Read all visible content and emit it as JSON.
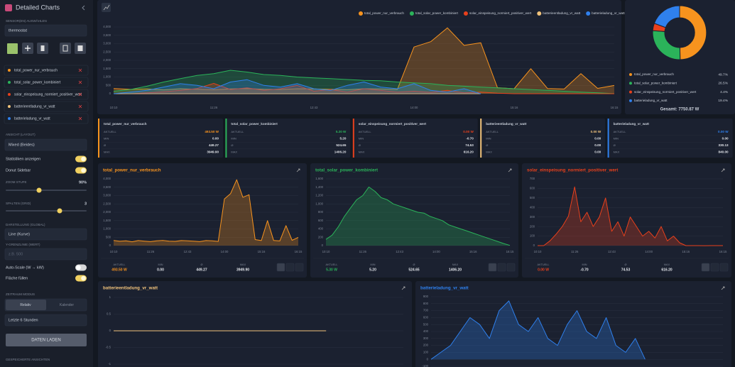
{
  "sidebar": {
    "title": "Detailed Charts",
    "sensor_label": "SENSOR(EN) AUSWÄHLEN",
    "sensor_input": "thermostat",
    "sensors": [
      {
        "name": "total_power_nur_verbrauch",
        "color": "#f7931e"
      },
      {
        "name": "total_solar_power_kombiniert",
        "color": "#2bb35a"
      },
      {
        "name": "solar_einspeisung_normiert_positiver_wert",
        "color": "#e8401c"
      },
      {
        "name": "batterieentladung_vr_watt",
        "color": "#f0c27b"
      },
      {
        "name": "batterieladung_vr_watt",
        "color": "#2f80ed"
      }
    ],
    "layout_label": "ANSICHT (LAYOUT)",
    "layout_value": "Mixed (Beides)",
    "toggles_top": [
      {
        "label": "Statistiken anzeigen",
        "on": true
      },
      {
        "label": "Donut Sidebar",
        "on": true
      }
    ],
    "zoom_label": "ZOOM STUFE",
    "zoom_value": "90%",
    "columns_label": "SPALTEN (GRID)",
    "columns_value": "3",
    "display_label": "DARSTELLUNG (GLOBAL)",
    "display_value": "Line (Kurve)",
    "limit_label": "Y-GRENZLINIE (WERT)",
    "limit_placeholder": "z.B. 500",
    "toggles_bottom": [
      {
        "label": "Auto-Scale (W → kW)",
        "on": false
      },
      {
        "label": "Fläche füllen",
        "on": true
      }
    ],
    "period_label": "ZEITRAUM MODUS",
    "tabs": [
      "Relativ",
      "Kalender"
    ],
    "period_value": "Letzte 6 Stunden",
    "load_button": "DATEN LADEN",
    "saved_label": "GESPEICHERTE ANSICHTEN"
  },
  "main_chart": {
    "type": "line",
    "grid": true,
    "fill": true,
    "categories": [
      "10:10",
      null,
      null,
      null,
      null,
      null,
      "11:26",
      null,
      null,
      null,
      null,
      null,
      "12:43",
      null,
      null,
      null,
      null,
      null,
      "14:00",
      null,
      null,
      null,
      null,
      null,
      "15:16",
      null,
      null,
      null,
      null,
      null,
      "16:15"
    ],
    "ylim": [
      0,
      4000
    ],
    "yticks": [
      0,
      500,
      {
        "value": 1000,
        "label": "1,000"
      },
      {
        "value": 1500,
        "label": "1,500"
      },
      {
        "value": 2000,
        "label": "2,000"
      },
      {
        "value": 2500,
        "label": "2,500"
      },
      {
        "value": 3000,
        "label": "3,000"
      },
      {
        "value": 3500,
        "label": "3,500"
      },
      {
        "value": 4000,
        "label": "4,000"
      }
    ],
    "series": [
      {
        "name": "total_power_nur_verbrauch",
        "color": "#f7931e",
        "values": [
          310,
          260,
          290,
          230,
          300,
          270,
          240,
          285,
          305,
          265,
          255,
          300,
          285,
          265,
          240,
          300,
          285,
          250,
          2800,
          3120,
          3949.9,
          2900,
          3050,
          360,
          300,
          1500,
          310,
          280,
          1200,
          320,
          493.5
        ]
      },
      {
        "name": "total_solar_power_kombiniert",
        "color": "#2bb35a",
        "values": [
          150,
          250,
          450,
          700,
          900,
          1100,
          1200,
          1406.2,
          1300,
          1150,
          1100,
          1000,
          950,
          900,
          850,
          800,
          780,
          700,
          650,
          600,
          500,
          450,
          400,
          350,
          300,
          250,
          200,
          150,
          100,
          50,
          5.3
        ]
      },
      {
        "name": "solar_einspeisung_normiert_positiver_wert",
        "color": "#e8401c",
        "values": [
          0,
          0,
          50,
          120,
          200,
          310,
          616.2,
          250,
          350,
          200,
          300,
          500,
          150,
          250,
          100,
          300,
          200,
          100,
          150,
          80,
          200,
          50,
          100,
          30,
          0,
          0,
          0,
          -0.7,
          0,
          0,
          0
        ]
      },
      {
        "name": "batterieentladung_vr_watt",
        "color": "#f0c27b",
        "values": [
          0,
          0,
          0,
          0,
          0,
          0,
          0,
          0,
          0,
          0,
          0,
          0,
          0,
          0,
          0,
          0,
          0,
          0,
          0,
          0,
          0,
          0,
          0,
          null,
          null,
          null,
          null,
          null,
          null,
          null,
          null
        ]
      },
      {
        "name": "batterieladung_vr_watt",
        "color": "#2f80ed",
        "values": [
          0,
          100,
          200,
          400,
          600,
          500,
          300,
          700,
          840,
          500,
          400,
          600,
          300,
          200,
          500,
          700,
          400,
          300,
          600,
          200,
          100,
          300,
          0,
          null,
          null,
          null,
          null,
          null,
          null,
          null,
          null
        ]
      }
    ]
  },
  "donut": {
    "type": "pie",
    "categories": [
      "total_power_nur_verbrauch",
      "total_solar_power_kombiniert",
      "solar_einspeisung_normiert_positiver_wert",
      "batterieladung_vr_watt"
    ],
    "values": [
      49.7,
      26.5,
      4.4,
      19.4
    ],
    "value_labels": [
      "49.7%",
      "26.5%",
      "4.4%",
      "19.4%"
    ],
    "colors": [
      "#f7931e",
      "#2bb35a",
      "#e8401c",
      "#2f80ed"
    ],
    "total": "Gesamt: 7750.87 W"
  },
  "stats": {
    "labels": [
      "AKTUELL",
      "MIN",
      "Ø",
      "MAX"
    ],
    "cards": [
      {
        "name": "total_power_nur_verbrauch",
        "color": "#f7931e",
        "values": [
          "493.50 W",
          "0.00",
          "449.27",
          "3949.90"
        ]
      },
      {
        "name": "total_solar_power_kombiniert",
        "color": "#2bb35a",
        "values": [
          "5.30 W",
          "5.20",
          "524.65",
          "1406.20"
        ]
      },
      {
        "name": "solar_einspeisung_normiert_positiver_wert",
        "color": "#e8401c",
        "values": [
          "0.00 W",
          "-0.70",
          "74.53",
          "616.20"
        ]
      },
      {
        "name": "batterieentladung_vr_watt",
        "color": "#f0c27b",
        "values": [
          "0.00 W",
          "0.00",
          "0.00",
          "0.00"
        ]
      },
      {
        "name": "batterieladung_vr_watt",
        "color": "#2f80ed",
        "values": [
          "0.00 W",
          "0.00",
          "330.13",
          "840.00"
        ]
      }
    ]
  },
  "panels": [
    {
      "title": "total_power_nur_verbrauch",
      "color": "#f7931e",
      "footer": [
        "493.50 W",
        "0.00",
        "449.27",
        "3949.90"
      ],
      "chart": {
        "type": "line",
        "grid": true,
        "fill": true,
        "categories": [
          "10:10",
          null,
          null,
          null,
          null,
          null,
          "11:26",
          null,
          null,
          null,
          null,
          null,
          "12:43",
          null,
          null,
          null,
          null,
          null,
          "14:00",
          null,
          null,
          null,
          null,
          null,
          "15:16",
          null,
          null,
          null,
          null,
          null,
          "16:15"
        ],
        "ylim": [
          0,
          4000
        ],
        "yticks": [
          0,
          500,
          {
            "value": 1000,
            "label": "1,000"
          },
          {
            "value": 1500,
            "label": "1,500"
          },
          {
            "value": 2000,
            "label": "2,000"
          },
          {
            "value": 2500,
            "label": "2,500"
          },
          {
            "value": 3000,
            "label": "3,000"
          },
          {
            "value": 3500,
            "label": "3,500"
          },
          {
            "value": 4000,
            "label": "4,000"
          }
        ],
        "series": [
          {
            "color": "#f7931e",
            "values": [
              310,
              260,
              290,
              230,
              300,
              270,
              240,
              285,
              305,
              265,
              255,
              300,
              285,
              265,
              240,
              300,
              285,
              250,
              2800,
              3120,
              3949.9,
              2900,
              3050,
              360,
              300,
              1500,
              310,
              280,
              1200,
              320,
              493.5
            ]
          }
        ]
      }
    },
    {
      "title": "total_solar_power_kombiniert",
      "color": "#2bb35a",
      "footer": [
        "5.30 W",
        "5.20",
        "524.65",
        "1406.20"
      ],
      "chart": {
        "type": "line",
        "grid": true,
        "fill": true,
        "categories": [
          "10:10",
          null,
          null,
          null,
          null,
          null,
          "11:26",
          null,
          null,
          null,
          null,
          null,
          "12:43",
          null,
          null,
          null,
          null,
          null,
          "14:00",
          null,
          null,
          null,
          null,
          null,
          "15:16",
          null,
          null,
          null,
          null,
          null,
          "16:15"
        ],
        "ylim": [
          0,
          1600
        ],
        "yticks": [
          0,
          200,
          400,
          600,
          800,
          {
            "value": 1000,
            "label": "1,000"
          },
          {
            "value": 1200,
            "label": "1,200"
          },
          {
            "value": 1400,
            "label": "1,400"
          },
          {
            "value": 1600,
            "label": "1,600"
          }
        ],
        "series": [
          {
            "color": "#2bb35a",
            "values": [
              150,
              250,
              450,
              700,
              900,
              1100,
              1200,
              1406.2,
              1300,
              1150,
              1100,
              1000,
              950,
              900,
              850,
              800,
              780,
              700,
              650,
              600,
              500,
              450,
              400,
              350,
              300,
              250,
              200,
              150,
              100,
              50,
              5.3
            ]
          }
        ]
      }
    },
    {
      "title": "solar_einspeisung_normiert_positiver_wert",
      "color": "#e8401c",
      "footer": [
        "0.00 W",
        "-0.70",
        "74.53",
        "616.20"
      ],
      "chart": {
        "type": "line",
        "grid": true,
        "fill": true,
        "categories": [
          "10:10",
          null,
          null,
          null,
          null,
          null,
          "11:26",
          null,
          null,
          null,
          null,
          null,
          "12:43",
          null,
          null,
          null,
          null,
          null,
          "14:00",
          null,
          null,
          null,
          null,
          null,
          "15:16",
          null,
          null,
          null,
          null,
          null,
          "16:15"
        ],
        "ylim": [
          0,
          700
        ],
        "yticks": [
          0,
          100,
          200,
          300,
          400,
          500,
          600,
          700
        ],
        "series": [
          {
            "color": "#e8401c",
            "values": [
              0,
              0,
              50,
              120,
              200,
              310,
              616.2,
              250,
              350,
              200,
              300,
              500,
              150,
              250,
              100,
              300,
              200,
              100,
              150,
              80,
              200,
              50,
              100,
              30,
              0,
              0,
              0,
              -0.7,
              0,
              0,
              0
            ]
          }
        ]
      }
    },
    {
      "title": "batterieentladung_vr_watt",
      "color": "#f0c27b",
      "chart": {
        "type": "line",
        "grid": true,
        "fill": true,
        "ylim": [
          -1,
          1
        ],
        "yticks": [
          -1,
          -0.5,
          0,
          0.5,
          1
        ],
        "series": [
          {
            "color": "#f0c27b",
            "values": [
              0,
              0,
              0,
              0,
              0,
              0,
              0,
              0,
              0,
              0,
              0,
              0,
              0,
              0,
              0,
              0,
              0,
              0,
              0,
              0,
              0,
              0,
              0,
              null,
              null,
              null,
              null,
              null,
              null,
              null,
              null
            ]
          }
        ]
      }
    },
    {
      "title": "batterieladung_vr_watt",
      "color": "#2f80ed",
      "chart": {
        "type": "line",
        "grid": true,
        "fill": true,
        "ylim": [
          -100,
          900
        ],
        "yticks": [
          -100,
          0,
          100,
          200,
          300,
          400,
          500,
          600,
          700,
          800,
          900
        ],
        "series": [
          {
            "color": "#2f80ed",
            "values": [
              0,
              100,
              200,
              400,
              600,
              500,
              300,
              700,
              840,
              500,
              400,
              600,
              300,
              200,
              500,
              700,
              400,
              300,
              600,
              200,
              100,
              300,
              0,
              null,
              null,
              null,
              null,
              null,
              null,
              null,
              null
            ]
          }
        ]
      }
    }
  ]
}
